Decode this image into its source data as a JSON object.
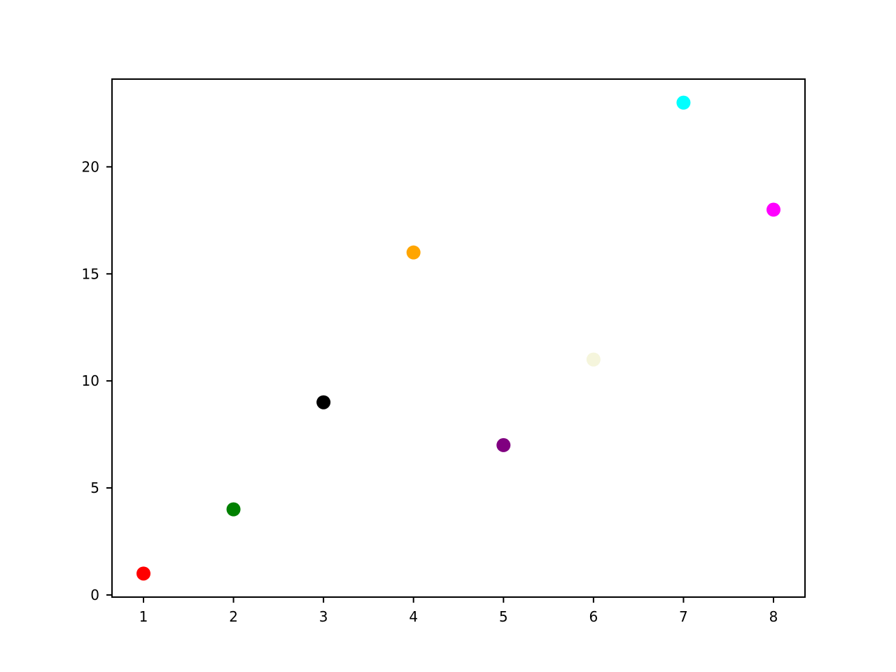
{
  "figure": {
    "background_color": "#ffffff",
    "spine_color": "#000000",
    "tick_color": "#000000"
  },
  "chart_data": {
    "type": "scatter",
    "title": "",
    "xlabel": "",
    "ylabel": "",
    "x": [
      1,
      2,
      3,
      4,
      5,
      6,
      7,
      8
    ],
    "y": [
      1,
      4,
      9,
      16,
      7,
      11,
      23,
      18
    ],
    "point_colors": [
      "#ff0000",
      "#008000",
      "#000000",
      "#ffa500",
      "#800080",
      "#f5f5dc",
      "#00ffff",
      "#ff00ff"
    ],
    "point_color_names": [
      "red",
      "green",
      "black",
      "orange",
      "purple",
      "beige",
      "cyan",
      "magenta"
    ],
    "xlim": [
      0.65,
      8.35
    ],
    "ylim": [
      -0.1,
      24.1
    ],
    "x_ticks": [
      1,
      2,
      3,
      4,
      5,
      6,
      7,
      8
    ],
    "x_tick_labels": [
      "1",
      "2",
      "3",
      "4",
      "5",
      "6",
      "7",
      "8"
    ],
    "y_ticks": [
      0,
      5,
      10,
      15,
      20
    ],
    "y_tick_labels": [
      "0",
      "5",
      "10",
      "15",
      "20"
    ],
    "grid": false,
    "legend": false,
    "marker_radius_px": 10
  }
}
